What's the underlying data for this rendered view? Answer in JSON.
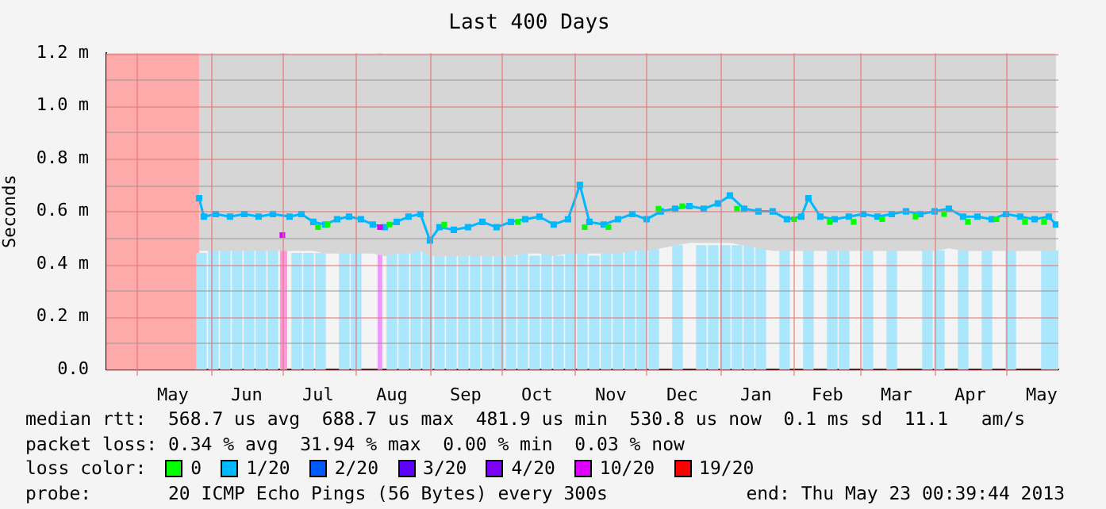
{
  "chart_data": {
    "type": "line",
    "title": "Last 400 Days",
    "ylabel": "Seconds",
    "legend_title": "loss color:",
    "legend": "bottom",
    "marker": "square",
    "grid": true,
    "xlim": [
      "2012-04-18T00:39",
      "2013-05-23T00:39"
    ],
    "xticks": [
      {
        "value": "2012-05-01",
        "label": null
      },
      {
        "value": "2012-05-16",
        "label": "May"
      },
      {
        "value": "2012-06-01",
        "label": null
      },
      {
        "value": "2012-06-16",
        "label": "Jun"
      },
      {
        "value": "2012-07-01",
        "label": null
      },
      {
        "value": "2012-07-16",
        "label": "Jul"
      },
      {
        "value": "2012-08-01",
        "label": null
      },
      {
        "value": "2012-08-16",
        "label": "Aug"
      },
      {
        "value": "2012-09-01",
        "label": null
      },
      {
        "value": "2012-09-16",
        "label": "Sep"
      },
      {
        "value": "2012-10-01",
        "label": null
      },
      {
        "value": "2012-10-16",
        "label": "Oct"
      },
      {
        "value": "2012-11-01",
        "label": null
      },
      {
        "value": "2012-11-16",
        "label": "Nov"
      },
      {
        "value": "2012-12-01",
        "label": null
      },
      {
        "value": "2012-12-16",
        "label": "Dec"
      },
      {
        "value": "2013-01-01",
        "label": null
      },
      {
        "value": "2013-01-16",
        "label": "Jan"
      },
      {
        "value": "2013-02-01",
        "label": null
      },
      {
        "value": "2013-02-15",
        "label": "Feb"
      },
      {
        "value": "2013-03-01",
        "label": null
      },
      {
        "value": "2013-03-16",
        "label": "Mar"
      },
      {
        "value": "2013-04-01",
        "label": null
      },
      {
        "value": "2013-04-16",
        "label": "Apr"
      },
      {
        "value": "2013-05-01",
        "label": null
      },
      {
        "value": "2013-05-16",
        "label": "May"
      }
    ],
    "ylim": [
      0,
      1.2
    ],
    "yticks": [
      {
        "value": 0,
        "label": "0.0"
      },
      {
        "value": 0.1,
        "label": null
      },
      {
        "value": 0.2,
        "label": "0.2 m"
      },
      {
        "value": 0.3,
        "label": null
      },
      {
        "value": 0.4,
        "label": "0.4 m"
      },
      {
        "value": 0.5,
        "label": null
      },
      {
        "value": 0.6,
        "label": "0.6 m"
      },
      {
        "value": 0.7,
        "label": null
      },
      {
        "value": 0.8,
        "label": "0.8 m"
      },
      {
        "value": 0.9,
        "label": null
      },
      {
        "value": 1.0,
        "label": "1.0 m"
      },
      {
        "value": 1.1,
        "label": null
      },
      {
        "value": 1.2,
        "label": "1.2 m"
      }
    ],
    "bands": [
      {
        "axis": "x",
        "from": "2012-04-18T00:39",
        "to": "2012-05-27",
        "color": "#ffaaaa"
      },
      {
        "axis": "x",
        "from": "2012-06-30",
        "to": "2012-07-03",
        "color": "#ff99dd"
      },
      {
        "axis": "x",
        "from": "2012-08-10",
        "to": "2012-08-12",
        "color": "#ee99ff"
      }
    ],
    "series": [
      {
        "type": "bar",
        "color": "#aae6fc",
        "x": [
          "2012-05-28",
          "2012-06-02",
          "2012-06-07",
          "2012-06-12",
          "2012-06-17",
          "2012-06-22",
          "2012-06-27",
          "2012-07-02",
          "2012-07-07",
          "2012-07-12",
          "2012-07-17",
          "2012-07-22",
          "2012-07-27",
          "2012-08-01",
          "2012-08-06",
          "2012-08-11",
          "2012-08-16",
          "2012-08-21",
          "2012-08-26",
          "2012-08-31",
          "2012-09-05",
          "2012-09-10",
          "2012-09-15",
          "2012-09-20",
          "2012-09-25",
          "2012-09-30",
          "2012-10-05",
          "2012-10-10",
          "2012-10-15",
          "2012-10-20",
          "2012-10-25",
          "2012-10-30",
          "2012-11-04",
          "2012-11-09",
          "2012-11-14",
          "2012-11-19",
          "2012-11-24",
          "2012-11-29",
          "2012-12-04",
          "2012-12-09",
          "2012-12-14",
          "2012-12-19",
          "2012-12-24",
          "2012-12-29",
          "2013-01-03",
          "2013-01-08",
          "2013-01-13",
          "2013-01-18",
          "2013-01-23",
          "2013-01-28",
          "2013-02-02",
          "2013-02-07",
          "2013-02-12",
          "2013-02-17",
          "2013-02-22",
          "2013-02-27",
          "2013-03-04",
          "2013-03-09",
          "2013-03-14",
          "2013-03-19",
          "2013-03-24",
          "2013-03-29",
          "2013-04-03",
          "2013-04-08",
          "2013-04-13",
          "2013-04-18",
          "2013-04-23",
          "2013-04-28",
          "2013-05-03",
          "2013-05-08",
          "2013-05-13",
          "2013-05-18",
          "2013-05-22"
        ],
        "values": [
          0.44,
          0.45,
          0.45,
          0.45,
          0.45,
          0.45,
          0.45,
          null,
          0.44,
          0.44,
          0.44,
          null,
          0.44,
          0.44,
          null,
          null,
          0.44,
          0.44,
          0.45,
          0.45,
          0.43,
          0.43,
          0.43,
          0.43,
          0.43,
          0.43,
          0.43,
          0.44,
          0.43,
          0.44,
          0.43,
          0.44,
          0.44,
          0.43,
          0.44,
          0.44,
          0.45,
          0.45,
          0.46,
          null,
          0.47,
          null,
          0.47,
          0.47,
          0.47,
          0.47,
          0.47,
          0.46,
          null,
          0.45,
          null,
          0.45,
          null,
          0.45,
          0.45,
          null,
          0.45,
          null,
          0.45,
          null,
          null,
          0.45,
          0.45,
          null,
          0.45,
          null,
          0.45,
          null,
          0.45,
          null,
          null,
          0.45,
          0.45
        ]
      },
      {
        "name": "0",
        "type": "scatter",
        "color": "#00ff00",
        "x": [
          "2012-07-16",
          "2012-07-20",
          "2012-08-15",
          "2012-09-07",
          "2012-10-08",
          "2012-11-05",
          "2012-11-15",
          "2012-12-06",
          "2012-12-16",
          "2013-01-08",
          "2013-02-01",
          "2013-02-16",
          "2013-02-26",
          "2013-03-10",
          "2013-03-24",
          "2013-04-05",
          "2013-04-15",
          "2013-04-27",
          "2013-05-09",
          "2013-05-17"
        ],
        "values": [
          0.54,
          0.55,
          0.55,
          0.55,
          0.56,
          0.54,
          0.54,
          0.61,
          0.62,
          0.61,
          0.57,
          0.56,
          0.56,
          0.57,
          0.58,
          0.59,
          0.56,
          0.57,
          0.56,
          0.56
        ]
      },
      {
        "name": "1/20",
        "color": "#00b8ff",
        "x": [
          "2012-05-27",
          "2012-05-29",
          "2012-06-03",
          "2012-06-09",
          "2012-06-15",
          "2012-06-21",
          "2012-06-27",
          "2012-07-04",
          "2012-07-09",
          "2012-07-14",
          "2012-07-19",
          "2012-07-24",
          "2012-07-29",
          "2012-08-03",
          "2012-08-08",
          "2012-08-13",
          "2012-08-18",
          "2012-08-23",
          "2012-08-28",
          "2012-09-01",
          "2012-09-05",
          "2012-09-11",
          "2012-09-17",
          "2012-09-23",
          "2012-09-29",
          "2012-10-05",
          "2012-10-11",
          "2012-10-17",
          "2012-10-23",
          "2012-10-29",
          "2012-11-03",
          "2012-11-07",
          "2012-11-13",
          "2012-11-19",
          "2012-11-25",
          "2012-12-01",
          "2012-12-07",
          "2012-12-13",
          "2012-12-19",
          "2012-12-25",
          "2012-12-31",
          "2013-01-05",
          "2013-01-11",
          "2013-01-17",
          "2013-01-23",
          "2013-01-29",
          "2013-02-04",
          "2013-02-07",
          "2013-02-12",
          "2013-02-18",
          "2013-02-24",
          "2013-03-02",
          "2013-03-08",
          "2013-03-14",
          "2013-03-20",
          "2013-03-26",
          "2013-04-01",
          "2013-04-07",
          "2013-04-13",
          "2013-04-19",
          "2013-04-25",
          "2013-05-01",
          "2013-05-07",
          "2013-05-13",
          "2013-05-19",
          "2013-05-22"
        ],
        "values": [
          0.65,
          0.58,
          0.59,
          0.58,
          0.59,
          0.58,
          0.59,
          0.58,
          0.59,
          0.56,
          0.55,
          0.57,
          0.58,
          0.57,
          0.55,
          0.54,
          0.56,
          0.58,
          0.59,
          0.49,
          0.54,
          0.53,
          0.54,
          0.56,
          0.54,
          0.56,
          0.57,
          0.58,
          0.55,
          0.57,
          0.7,
          0.56,
          0.55,
          0.57,
          0.59,
          0.57,
          0.6,
          0.61,
          0.62,
          0.61,
          0.63,
          0.66,
          0.61,
          0.6,
          0.6,
          0.57,
          0.58,
          0.65,
          0.58,
          0.57,
          0.58,
          0.59,
          0.58,
          0.59,
          0.6,
          0.59,
          0.6,
          0.61,
          0.58,
          0.58,
          0.57,
          0.59,
          0.58,
          0.57,
          0.58,
          0.55
        ],
        "lower": [
          0.45,
          0.45,
          0.45,
          0.45,
          0.45,
          0.45,
          0.45,
          0.45,
          0.45,
          0.45,
          0.44,
          0.44,
          0.44,
          0.44,
          0.44,
          0.43,
          0.44,
          0.44,
          0.45,
          0.43,
          0.43,
          0.43,
          0.43,
          0.43,
          0.43,
          0.43,
          0.44,
          0.44,
          0.43,
          0.44,
          0.44,
          0.44,
          0.44,
          0.44,
          0.45,
          0.45,
          0.46,
          0.47,
          0.48,
          0.48,
          0.48,
          0.48,
          0.47,
          0.46,
          0.45,
          0.45,
          0.45,
          0.45,
          0.45,
          0.45,
          0.45,
          0.45,
          0.45,
          0.45,
          0.45,
          0.45,
          0.45,
          0.46,
          0.45,
          0.45,
          0.45,
          0.45,
          0.45,
          0.45,
          0.45,
          0.45
        ],
        "upper": [
          1.2,
          1.2,
          1.2,
          1.2,
          1.2,
          1.2,
          1.2,
          1.2,
          1.2,
          1.2,
          1.2,
          1.2,
          1.2,
          1.2,
          1.2,
          1.2,
          1.2,
          1.2,
          1.2,
          1.2,
          1.2,
          1.2,
          1.2,
          1.2,
          1.2,
          1.2,
          1.2,
          1.2,
          1.2,
          1.2,
          1.2,
          1.2,
          1.2,
          1.2,
          1.2,
          1.2,
          1.2,
          1.2,
          1.2,
          1.2,
          1.2,
          1.2,
          1.2,
          1.2,
          1.2,
          1.2,
          1.2,
          1.2,
          1.2,
          1.2,
          1.2,
          1.2,
          1.2,
          1.2,
          1.2,
          1.2,
          1.2,
          1.2,
          1.2,
          1.2,
          1.2,
          1.2,
          1.2,
          1.2,
          1.2,
          1.2
        ]
      },
      {
        "name": "2/20",
        "type": "scatter",
        "color": "#0059ff"
      },
      {
        "name": "3/20",
        "type": "scatter",
        "color": "#5e00ff"
      },
      {
        "name": "4/20",
        "type": "scatter",
        "color": "#7e00ff"
      },
      {
        "name": "10/20",
        "type": "scatter",
        "color": "#dd00ff",
        "x": [
          "2012-07-01",
          "2012-08-11"
        ],
        "values": [
          0.51,
          0.54
        ]
      },
      {
        "name": "19/20",
        "type": "scatter",
        "color": "#ff0000"
      }
    ],
    "annotations": [
      "median rtt:  568.7 us avg  688.7 us max  481.9 us min  530.8 us now  0.1 ms sd  11.1   am/s",
      "packet loss: 0.34 % avg  31.94 % max  0.00 % min  0.03 % now",
      "probe:       20 ICMP Echo Pings (56 Bytes) every 300s",
      "end: Thu May 23 00:39:44 2013"
    ]
  }
}
